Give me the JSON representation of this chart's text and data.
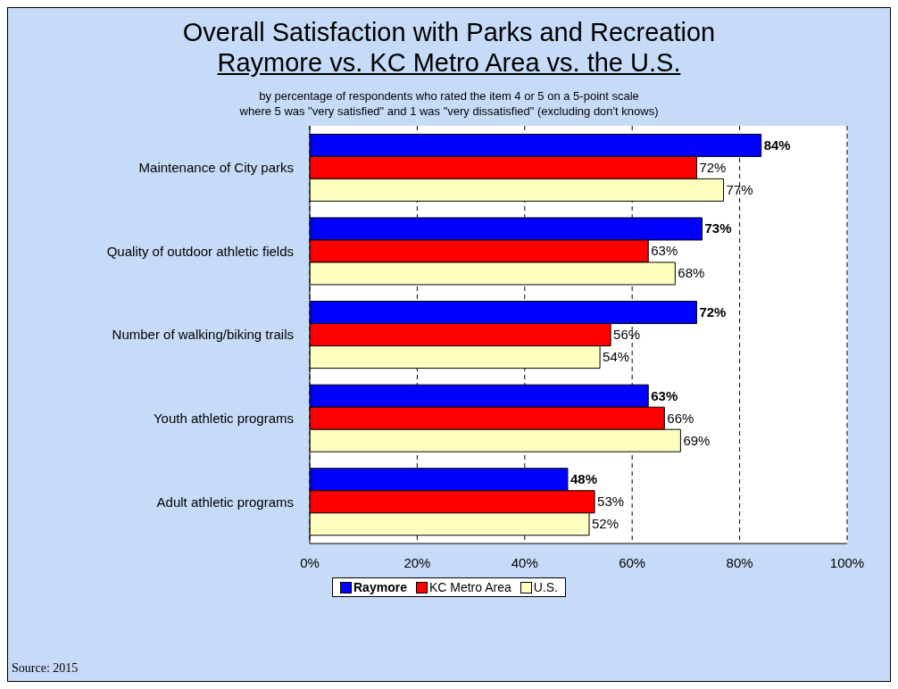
{
  "chart_data": {
    "type": "bar",
    "orientation": "horizontal",
    "title": "Overall Satisfaction with Parks and Recreation\nRaymore vs. KC Metro Area vs. the U.S.",
    "subtitle": "by percentage of respondents who rated the item 4 or 5 on a 5-point scale\nwhere 5 was \"very satisfied\" and 1 was \"very dissatisfied\" (excluding don't knows)",
    "categories": [
      "Maintenance of City parks",
      "Quality of outdoor athletic fields",
      "Number of walking/biking trails",
      "Youth athletic programs",
      "Adult athletic programs"
    ],
    "series": [
      {
        "name": "Raymore",
        "color": "#0000ff",
        "values": [
          84,
          73,
          72,
          63,
          48
        ],
        "value_labels": [
          "84%",
          "73%",
          "72%",
          "63%",
          "48%"
        ]
      },
      {
        "name": "KC Metro Area",
        "color": "#ff0000",
        "values": [
          72,
          63,
          56,
          66,
          53
        ],
        "value_labels": [
          "72%",
          "63%",
          "56%",
          "66%",
          "53%"
        ]
      },
      {
        "name": "U.S.",
        "color": "#ffffc0",
        "values": [
          77,
          68,
          54,
          69,
          52
        ],
        "value_labels": [
          "77%",
          "68%",
          "54%",
          "69%",
          "52%"
        ]
      }
    ],
    "xlim": [
      0,
      100
    ],
    "xticks": [
      {
        "value": 0,
        "label": "0%"
      },
      {
        "value": 20,
        "label": "20%"
      },
      {
        "value": 40,
        "label": "40%"
      },
      {
        "value": 60,
        "label": "60%"
      },
      {
        "value": 80,
        "label": "80%"
      },
      {
        "value": 100,
        "label": "100%"
      }
    ],
    "grid": "x",
    "legend": "bottom",
    "annotations": [
      "Source:  2015"
    ]
  }
}
